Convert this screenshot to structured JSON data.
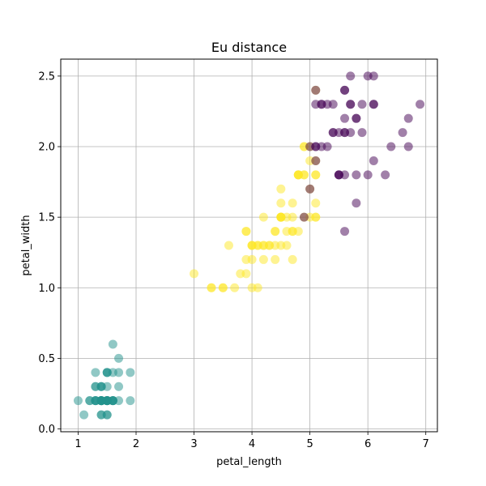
{
  "chart_data": {
    "type": "scatter",
    "title": "Eu distance",
    "xlabel": "petal_length",
    "ylabel": "petal_width",
    "xlim": [
      0.7,
      7.2
    ],
    "ylim": [
      -0.02,
      2.62
    ],
    "xticks": [
      1,
      2,
      3,
      4,
      5,
      6,
      7
    ],
    "xtick_labels": [
      "1",
      "2",
      "3",
      "4",
      "5",
      "6",
      "7"
    ],
    "yticks": [
      0.0,
      0.5,
      1.0,
      1.5,
      2.0,
      2.5
    ],
    "ytick_labels": [
      "0.0",
      "0.5",
      "1.0",
      "1.5",
      "2.0",
      "2.5"
    ],
    "grid": true,
    "series": [
      {
        "color": "#21918c",
        "points": [
          [
            1.4,
            0.2
          ],
          [
            1.4,
            0.2
          ],
          [
            1.3,
            0.2
          ],
          [
            1.5,
            0.2
          ],
          [
            1.4,
            0.2
          ],
          [
            1.7,
            0.4
          ],
          [
            1.4,
            0.3
          ],
          [
            1.5,
            0.2
          ],
          [
            1.4,
            0.2
          ],
          [
            1.5,
            0.1
          ],
          [
            1.5,
            0.2
          ],
          [
            1.6,
            0.2
          ],
          [
            1.4,
            0.1
          ],
          [
            1.1,
            0.1
          ],
          [
            1.2,
            0.2
          ],
          [
            1.5,
            0.4
          ],
          [
            1.3,
            0.4
          ],
          [
            1.4,
            0.3
          ],
          [
            1.7,
            0.3
          ],
          [
            1.5,
            0.3
          ],
          [
            1.7,
            0.2
          ],
          [
            1.5,
            0.4
          ],
          [
            1.0,
            0.2
          ],
          [
            1.7,
            0.5
          ],
          [
            1.9,
            0.2
          ],
          [
            1.6,
            0.2
          ],
          [
            1.6,
            0.4
          ],
          [
            1.5,
            0.2
          ],
          [
            1.4,
            0.2
          ],
          [
            1.6,
            0.2
          ],
          [
            1.6,
            0.2
          ],
          [
            1.5,
            0.4
          ],
          [
            1.5,
            0.1
          ],
          [
            1.4,
            0.2
          ],
          [
            1.5,
            0.2
          ],
          [
            1.2,
            0.2
          ],
          [
            1.3,
            0.2
          ],
          [
            1.4,
            0.1
          ],
          [
            1.3,
            0.2
          ],
          [
            1.5,
            0.2
          ],
          [
            1.3,
            0.3
          ],
          [
            1.3,
            0.3
          ],
          [
            1.3,
            0.2
          ],
          [
            1.6,
            0.6
          ],
          [
            1.9,
            0.4
          ],
          [
            1.4,
            0.3
          ],
          [
            1.6,
            0.2
          ],
          [
            1.4,
            0.2
          ],
          [
            1.5,
            0.2
          ],
          [
            1.4,
            0.2
          ]
        ]
      },
      {
        "color": "#fde725",
        "points": [
          [
            4.7,
            1.4
          ],
          [
            4.5,
            1.5
          ],
          [
            4.0,
            1.3
          ],
          [
            4.6,
            1.5
          ],
          [
            4.5,
            1.3
          ],
          [
            4.7,
            1.6
          ],
          [
            3.3,
            1.0
          ],
          [
            4.6,
            1.3
          ],
          [
            3.9,
            1.4
          ],
          [
            3.5,
            1.0
          ],
          [
            4.2,
            1.5
          ],
          [
            4.0,
            1.0
          ],
          [
            4.7,
            1.4
          ],
          [
            3.6,
            1.3
          ],
          [
            4.4,
            1.4
          ],
          [
            4.5,
            1.5
          ],
          [
            4.1,
            1.0
          ],
          [
            4.5,
            1.5
          ],
          [
            3.9,
            1.1
          ],
          [
            4.8,
            1.8
          ],
          [
            4.0,
            1.3
          ],
          [
            4.9,
            1.5
          ],
          [
            4.7,
            1.2
          ],
          [
            4.3,
            1.3
          ],
          [
            4.4,
            1.4
          ],
          [
            4.8,
            1.4
          ],
          [
            5.0,
            1.7
          ],
          [
            4.5,
            1.5
          ],
          [
            3.5,
            1.0
          ],
          [
            3.8,
            1.1
          ],
          [
            3.7,
            1.0
          ],
          [
            3.9,
            1.2
          ],
          [
            5.1,
            1.6
          ],
          [
            4.5,
            1.5
          ],
          [
            4.5,
            1.6
          ],
          [
            4.7,
            1.5
          ],
          [
            4.4,
            1.3
          ],
          [
            4.1,
            1.3
          ],
          [
            4.0,
            1.3
          ],
          [
            4.4,
            1.2
          ],
          [
            4.6,
            1.4
          ],
          [
            4.0,
            1.2
          ],
          [
            3.3,
            1.0
          ],
          [
            4.2,
            1.3
          ],
          [
            4.2,
            1.2
          ],
          [
            4.2,
            1.3
          ],
          [
            4.3,
            1.3
          ],
          [
            3.0,
            1.1
          ],
          [
            4.1,
            1.3
          ],
          [
            5.1,
            2.4
          ],
          [
            4.5,
            1.7
          ],
          [
            5.0,
            2.0
          ],
          [
            4.9,
            1.8
          ],
          [
            4.9,
            2.0
          ],
          [
            4.8,
            1.8
          ],
          [
            4.9,
            1.8
          ],
          [
            4.8,
            1.8
          ],
          [
            5.0,
            1.5
          ],
          [
            5.1,
            1.8
          ],
          [
            5.1,
            1.5
          ],
          [
            4.8,
            1.8
          ],
          [
            5.1,
            1.9
          ],
          [
            5.0,
            1.9
          ],
          [
            4.9,
            2.0
          ],
          [
            5.1,
            1.5
          ],
          [
            3.9,
            1.4
          ],
          [
            5.1,
            1.8
          ]
        ]
      },
      {
        "color": "#440154",
        "points": [
          [
            6.0,
            2.5
          ],
          [
            5.1,
            1.9
          ],
          [
            5.9,
            2.1
          ],
          [
            5.6,
            1.8
          ],
          [
            5.8,
            2.2
          ],
          [
            6.6,
            2.1
          ],
          [
            6.3,
            1.8
          ],
          [
            5.8,
            1.8
          ],
          [
            6.1,
            2.5
          ],
          [
            5.3,
            2.0
          ],
          [
            5.5,
            2.1
          ],
          [
            5.0,
            2.0
          ],
          [
            5.1,
            2.4
          ],
          [
            5.3,
            2.3
          ],
          [
            5.5,
            1.8
          ],
          [
            6.7,
            2.2
          ],
          [
            6.9,
            2.3
          ],
          [
            5.7,
            2.3
          ],
          [
            6.7,
            2.0
          ],
          [
            5.7,
            2.1
          ],
          [
            6.0,
            1.8
          ],
          [
            5.6,
            2.1
          ],
          [
            5.8,
            1.6
          ],
          [
            6.1,
            1.9
          ],
          [
            6.4,
            2.0
          ],
          [
            5.6,
            2.2
          ],
          [
            5.6,
            1.4
          ],
          [
            6.1,
            2.3
          ],
          [
            5.6,
            2.4
          ],
          [
            5.5,
            1.8
          ],
          [
            5.4,
            2.1
          ],
          [
            5.6,
            2.4
          ],
          [
            5.1,
            2.3
          ],
          [
            5.9,
            2.3
          ],
          [
            5.7,
            2.5
          ],
          [
            5.2,
            2.3
          ],
          [
            5.2,
            2.0
          ],
          [
            5.4,
            2.3
          ],
          [
            5.6,
            2.1
          ],
          [
            5.4,
            2.1
          ],
          [
            5.8,
            2.2
          ],
          [
            5.7,
            2.3
          ],
          [
            5.2,
            2.3
          ],
          [
            5.0,
            1.7
          ],
          [
            4.9,
            1.5
          ],
          [
            5.1,
            2.0
          ],
          [
            5.5,
            1.8
          ],
          [
            6.1,
            2.3
          ],
          [
            5.1,
            2.0
          ]
        ]
      }
    ]
  }
}
